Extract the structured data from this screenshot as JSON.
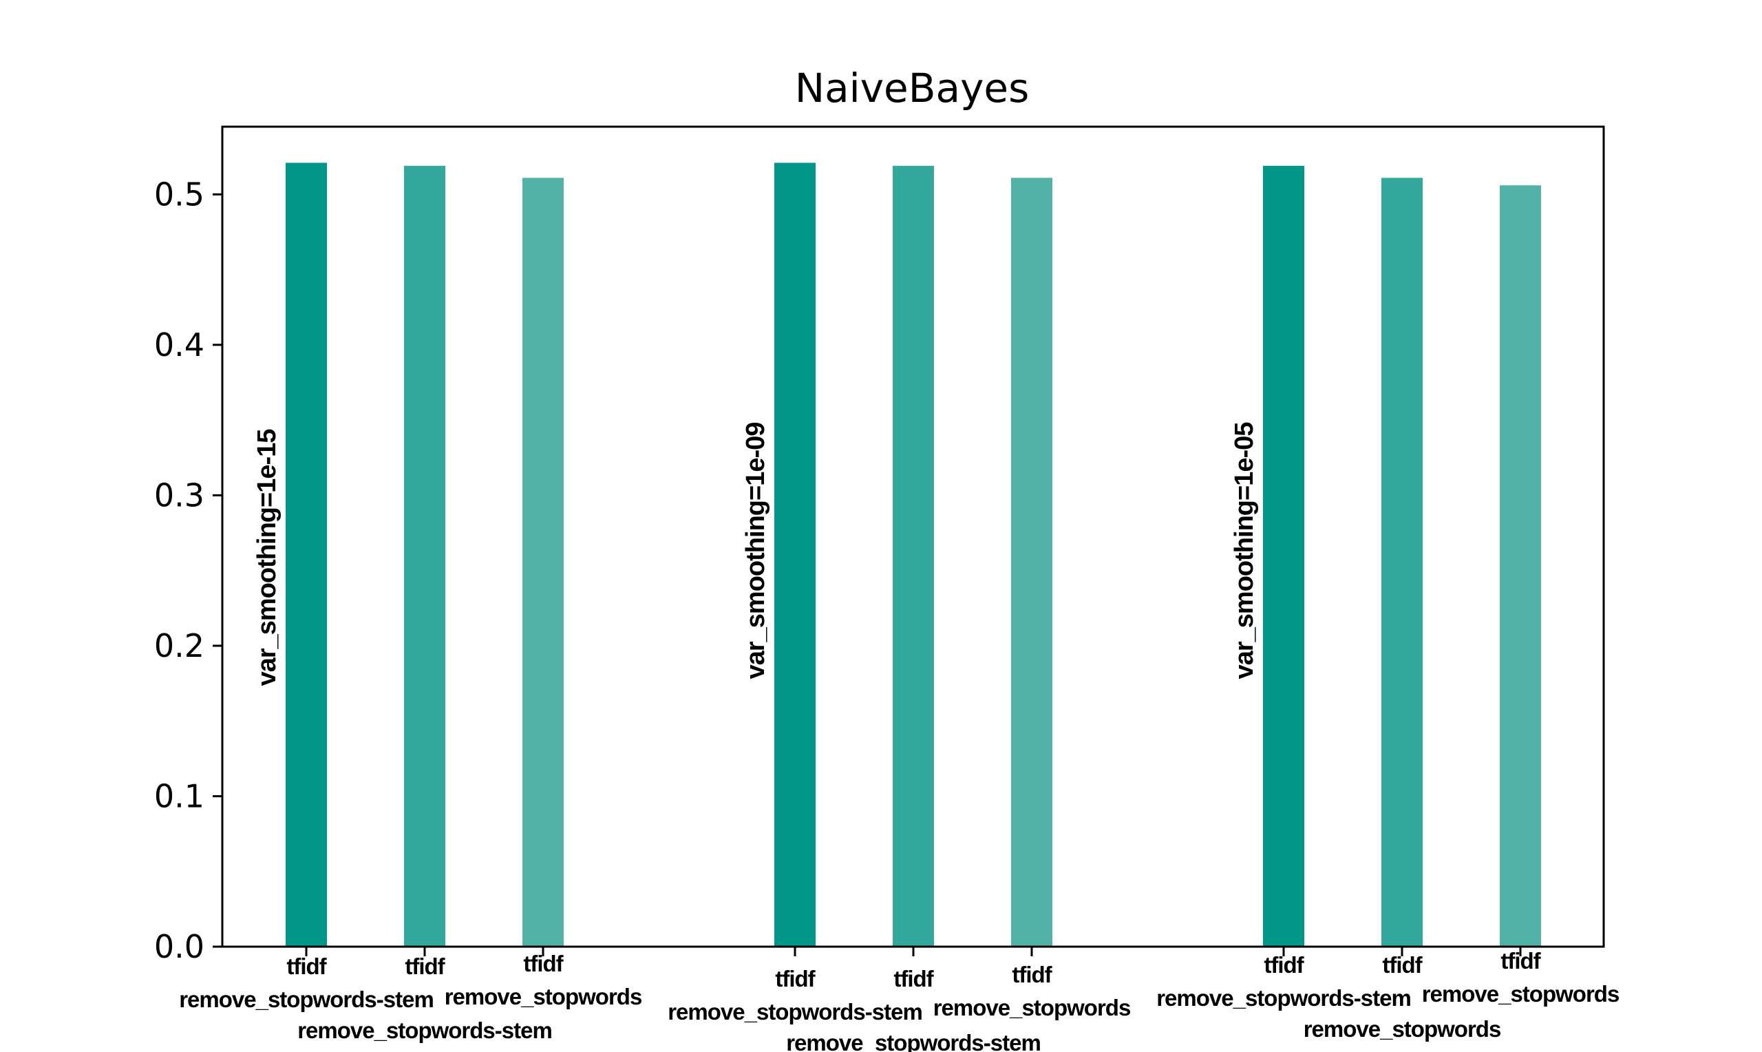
{
  "chart_data": {
    "type": "bar",
    "title": "NaiveBayes",
    "xlabel": "",
    "ylabel": "",
    "ylim": [
      0,
      0.545
    ],
    "yticks": [
      "0.0",
      "0.1",
      "0.2",
      "0.3",
      "0.4",
      "0.5"
    ],
    "grid": false,
    "groups": [
      {
        "annotation": "var_smoothing=1e-15",
        "bars": [
          {
            "label": [
              "tfidf",
              "remove_stopwords-stem"
            ],
            "value": 0.521
          },
          {
            "label": [
              "tfidf",
              "remove_stopwords-stem"
            ],
            "value": 0.519
          },
          {
            "label": [
              "tfidf",
              "remove_stopwords"
            ],
            "value": 0.511
          }
        ]
      },
      {
        "annotation": "var_smoothing=1e-09",
        "bars": [
          {
            "label": [
              "tfidf",
              "remove_stopwords-stem"
            ],
            "value": 0.521
          },
          {
            "label": [
              "tfidf",
              "remove_stopwords-stem"
            ],
            "value": 0.519
          },
          {
            "label": [
              "tfidf",
              "remove_stopwords"
            ],
            "value": 0.511
          }
        ]
      },
      {
        "annotation": "var_smoothing=1e-05",
        "bars": [
          {
            "label": [
              "tfidf",
              "remove_stopwords-stem"
            ],
            "value": 0.519
          },
          {
            "label": [
              "tfidf",
              "remove_stopwords"
            ],
            "value": 0.511
          },
          {
            "label": [
              "tfidf",
              "remove_stopwords"
            ],
            "value": 0.506
          }
        ]
      }
    ],
    "colors": [
      "#009688",
      "#33a89c",
      "#52b2a7"
    ]
  }
}
